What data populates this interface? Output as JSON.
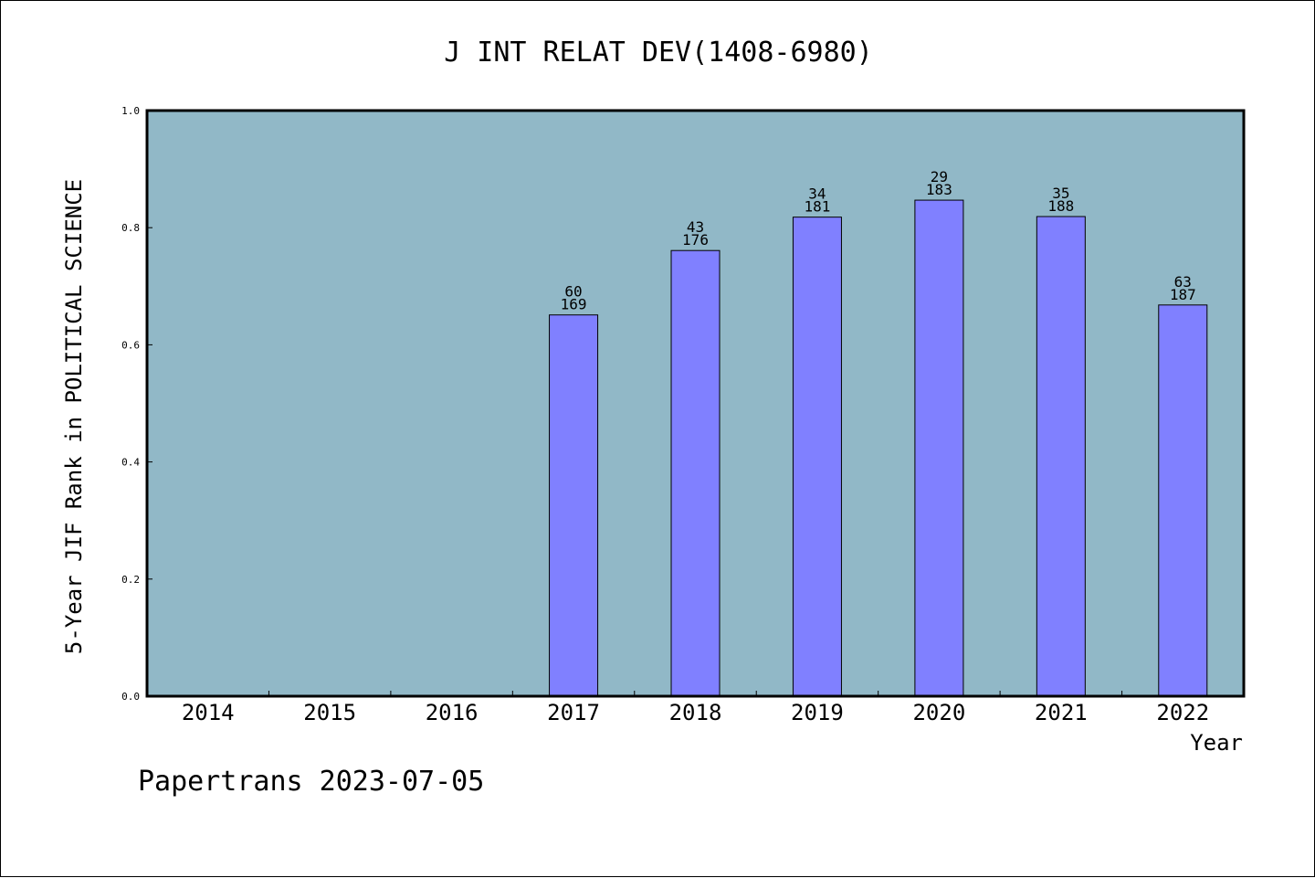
{
  "chart_data": {
    "type": "bar",
    "title": "J INT RELAT DEV(1408-6980)",
    "xlabel": "Year",
    "ylabel": "5-Year JIF Rank in POLITICAL SCIENCE",
    "footer": "Papertrans 2023-07-05",
    "categories": [
      "2014",
      "2015",
      "2016",
      "2017",
      "2018",
      "2019",
      "2020",
      "2021",
      "2022"
    ],
    "values": [
      null,
      null,
      null,
      0.651,
      0.761,
      0.818,
      0.847,
      0.819,
      0.668
    ],
    "rank_labels": [
      "",
      "",
      "",
      "60",
      "43",
      "34",
      "29",
      "35",
      "63"
    ],
    "total_labels": [
      "",
      "",
      "",
      "169",
      "176",
      "181",
      "183",
      "188",
      "187"
    ],
    "ylim": [
      0,
      1.0
    ],
    "yticks": [
      "0.0",
      "0.2",
      "0.4",
      "0.6",
      "0.8",
      "1.0"
    ],
    "grid": false,
    "colors": {
      "plot_bg": "#91b8c7",
      "bar": "#8080ff",
      "axis": "#000000"
    }
  }
}
